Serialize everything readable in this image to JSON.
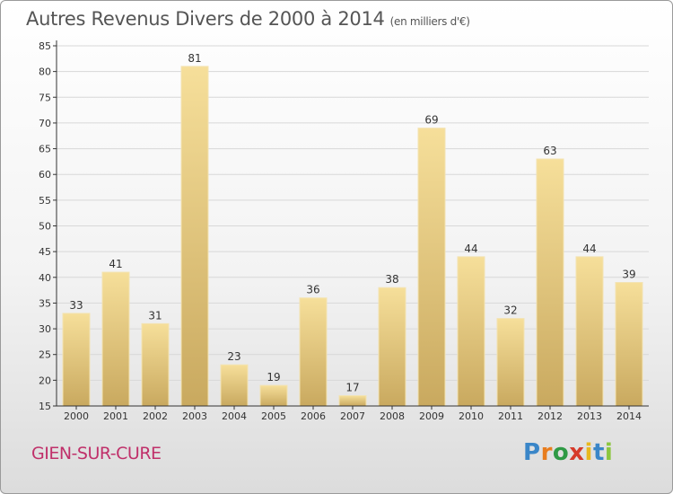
{
  "header": {
    "title": "Autres Revenus Divers de 2000 à 2014",
    "unit": "(en milliers d'€)"
  },
  "place": "GIEN-SUR-CURE",
  "logo": {
    "letters": [
      "P",
      "r",
      "o",
      "x",
      "i",
      "t",
      "i"
    ],
    "colors": [
      "#3a86c8",
      "#e87d1e",
      "#2f9a45",
      "#d63a2a",
      "#e8b81e",
      "#3a86c8",
      "#8cc63f"
    ]
  },
  "colors": {
    "bar_top": "#f6df9a",
    "bar_bottom": "#c9a95f",
    "axis": "#333333",
    "grid": "#d8d8d8"
  },
  "chart_data": {
    "type": "bar",
    "categories": [
      "2000",
      "2001",
      "2002",
      "2003",
      "2004",
      "2005",
      "2006",
      "2007",
      "2008",
      "2009",
      "2010",
      "2011",
      "2012",
      "2013",
      "2014"
    ],
    "values": [
      33,
      41,
      31,
      81,
      23,
      19,
      36,
      17,
      38,
      69,
      44,
      32,
      63,
      44,
      39
    ],
    "ylim": [
      15,
      85
    ],
    "yticks": [
      15,
      20,
      25,
      30,
      35,
      40,
      45,
      50,
      55,
      60,
      65,
      70,
      75,
      80,
      85
    ],
    "grid": true,
    "data_labels": true
  }
}
